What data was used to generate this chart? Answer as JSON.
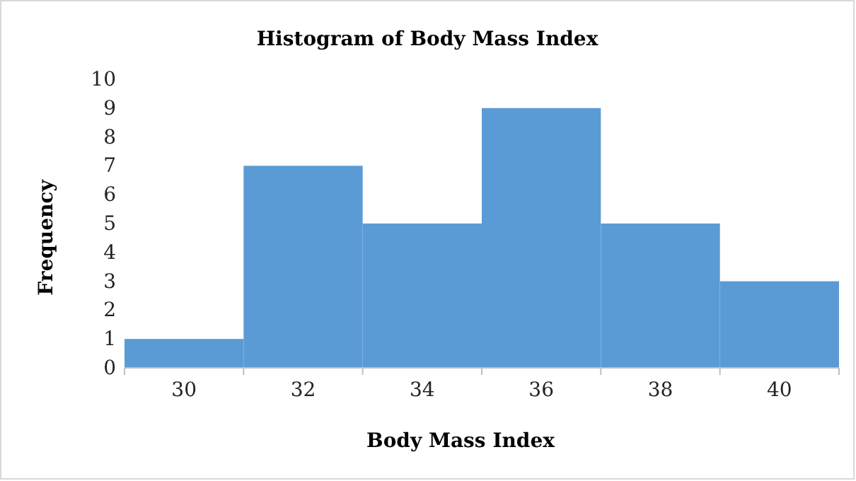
{
  "chart_data": {
    "type": "histogram",
    "title": "Histogram of Body Mass Index",
    "xlabel": "Body Mass Index",
    "ylabel": "Frequency",
    "bins": [
      29,
      31,
      33,
      35,
      37,
      39,
      41
    ],
    "values": [
      1,
      7,
      5,
      9,
      5,
      3
    ],
    "color": "#5b9bd5",
    "xlim": [
      29,
      41
    ],
    "xticks": [
      30,
      32,
      34,
      36,
      38,
      40
    ],
    "ylim": [
      0,
      10
    ],
    "yticks": [
      0,
      1,
      2,
      3,
      4,
      5,
      6,
      7,
      8,
      9,
      10
    ],
    "grid": false
  }
}
